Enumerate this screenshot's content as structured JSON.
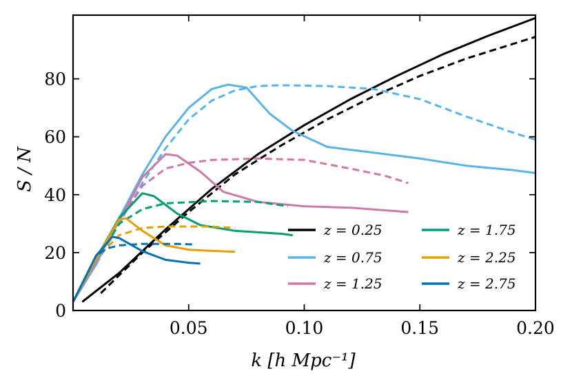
{
  "chart_data": {
    "type": "line",
    "xlabel": "k [h Mpc⁻¹]",
    "ylabel": "S / N",
    "xlim": [
      0.0,
      0.2
    ],
    "ylim": [
      0,
      102
    ],
    "xticks": [
      0.05,
      0.1,
      0.15,
      0.2
    ],
    "xtick_labels": [
      "0.05",
      "0.10",
      "0.15",
      "0.20"
    ],
    "yticks": [
      0,
      20,
      40,
      60,
      80
    ],
    "ytick_labels": [
      "0",
      "20",
      "40",
      "60",
      "80"
    ],
    "legend_position": "bottom-right",
    "legend_columns": 2,
    "note": "solid and dashed curves share the same colour for each redshift",
    "series": [
      {
        "name": "z = 0.25",
        "color": "#000000",
        "solid": [
          [
            0.004,
            3
          ],
          [
            0.02,
            13
          ],
          [
            0.04,
            28
          ],
          [
            0.06,
            42
          ],
          [
            0.08,
            54
          ],
          [
            0.1,
            64
          ],
          [
            0.12,
            73
          ],
          [
            0.14,
            81
          ],
          [
            0.16,
            88.5
          ],
          [
            0.18,
            95
          ],
          [
            0.2,
            101
          ]
        ],
        "dashed": [
          [
            0.012,
            6
          ],
          [
            0.03,
            20
          ],
          [
            0.05,
            34
          ],
          [
            0.07,
            47
          ],
          [
            0.09,
            57
          ],
          [
            0.11,
            66
          ],
          [
            0.13,
            74
          ],
          [
            0.15,
            81
          ],
          [
            0.17,
            87
          ],
          [
            0.19,
            92
          ],
          [
            0.2,
            94.5
          ]
        ]
      },
      {
        "name": "z = 0.75",
        "color": "#56b4e9",
        "solid": [
          [
            0.0,
            3
          ],
          [
            0.01,
            16
          ],
          [
            0.02,
            32
          ],
          [
            0.03,
            47
          ],
          [
            0.04,
            60
          ],
          [
            0.05,
            70
          ],
          [
            0.06,
            76.5
          ],
          [
            0.067,
            78
          ],
          [
            0.075,
            77
          ],
          [
            0.085,
            68
          ],
          [
            0.095,
            62
          ],
          [
            0.11,
            56.5
          ],
          [
            0.13,
            54.5
          ],
          [
            0.15,
            52.5
          ],
          [
            0.17,
            50
          ],
          [
            0.19,
            48.5
          ],
          [
            0.2,
            47.5
          ]
        ],
        "dashed": [
          [
            0.0,
            3
          ],
          [
            0.01,
            16
          ],
          [
            0.02,
            30
          ],
          [
            0.03,
            44
          ],
          [
            0.04,
            56
          ],
          [
            0.05,
            66
          ],
          [
            0.06,
            72.5
          ],
          [
            0.07,
            76
          ],
          [
            0.08,
            77.5
          ],
          [
            0.09,
            77.8
          ],
          [
            0.11,
            77.5
          ],
          [
            0.13,
            76.5
          ],
          [
            0.15,
            73
          ],
          [
            0.17,
            67
          ],
          [
            0.19,
            61.5
          ],
          [
            0.2,
            59
          ]
        ]
      },
      {
        "name": "z = 1.25",
        "color": "#cc79a7",
        "solid": [
          [
            0.0,
            3
          ],
          [
            0.01,
            17
          ],
          [
            0.02,
            31
          ],
          [
            0.03,
            46
          ],
          [
            0.04,
            54
          ],
          [
            0.045,
            53.5
          ],
          [
            0.055,
            48
          ],
          [
            0.065,
            41
          ],
          [
            0.08,
            37.5
          ],
          [
            0.1,
            36
          ],
          [
            0.12,
            35.5
          ],
          [
            0.145,
            34
          ]
        ],
        "dashed": [
          [
            0.0,
            3
          ],
          [
            0.01,
            17
          ],
          [
            0.02,
            31
          ],
          [
            0.03,
            43
          ],
          [
            0.04,
            49
          ],
          [
            0.05,
            51
          ],
          [
            0.06,
            52
          ],
          [
            0.08,
            52.5
          ],
          [
            0.1,
            52
          ],
          [
            0.12,
            49
          ],
          [
            0.135,
            46.5
          ],
          [
            0.145,
            44
          ]
        ]
      },
      {
        "name": "z = 1.75",
        "color": "#009e73",
        "solid": [
          [
            0.0,
            3
          ],
          [
            0.01,
            18
          ],
          [
            0.02,
            32
          ],
          [
            0.03,
            40.5
          ],
          [
            0.035,
            39.5
          ],
          [
            0.045,
            33.5
          ],
          [
            0.055,
            29.5
          ],
          [
            0.07,
            27.5
          ],
          [
            0.09,
            26.5
          ],
          [
            0.095,
            26
          ]
        ],
        "dashed": [
          [
            0.0,
            3
          ],
          [
            0.01,
            18
          ],
          [
            0.02,
            30
          ],
          [
            0.03,
            35
          ],
          [
            0.04,
            37
          ],
          [
            0.06,
            37.8
          ],
          [
            0.08,
            37.5
          ],
          [
            0.093,
            36
          ]
        ]
      },
      {
        "name": "z = 2.25",
        "color": "#e69f00",
        "solid": [
          [
            0.0,
            3
          ],
          [
            0.01,
            18
          ],
          [
            0.02,
            31.5
          ],
          [
            0.023,
            31.8
          ],
          [
            0.03,
            27.5
          ],
          [
            0.04,
            22.5
          ],
          [
            0.05,
            21
          ],
          [
            0.06,
            20.6
          ],
          [
            0.07,
            20.3
          ]
        ],
        "dashed": [
          [
            0.0,
            3
          ],
          [
            0.01,
            18
          ],
          [
            0.02,
            26
          ],
          [
            0.03,
            28.5
          ],
          [
            0.04,
            29
          ],
          [
            0.06,
            29
          ],
          [
            0.07,
            28.5
          ]
        ]
      },
      {
        "name": "z = 2.75",
        "color": "#0072b2",
        "solid": [
          [
            0.0,
            3
          ],
          [
            0.01,
            19
          ],
          [
            0.017,
            25.5
          ],
          [
            0.02,
            25
          ],
          [
            0.03,
            20.5
          ],
          [
            0.04,
            17.5
          ],
          [
            0.05,
            16.5
          ],
          [
            0.055,
            16.2
          ]
        ],
        "dashed": [
          [
            0.0,
            3
          ],
          [
            0.01,
            19
          ],
          [
            0.015,
            21.5
          ],
          [
            0.02,
            22.5
          ],
          [
            0.03,
            23
          ],
          [
            0.045,
            23
          ],
          [
            0.053,
            22.8
          ]
        ]
      }
    ]
  }
}
